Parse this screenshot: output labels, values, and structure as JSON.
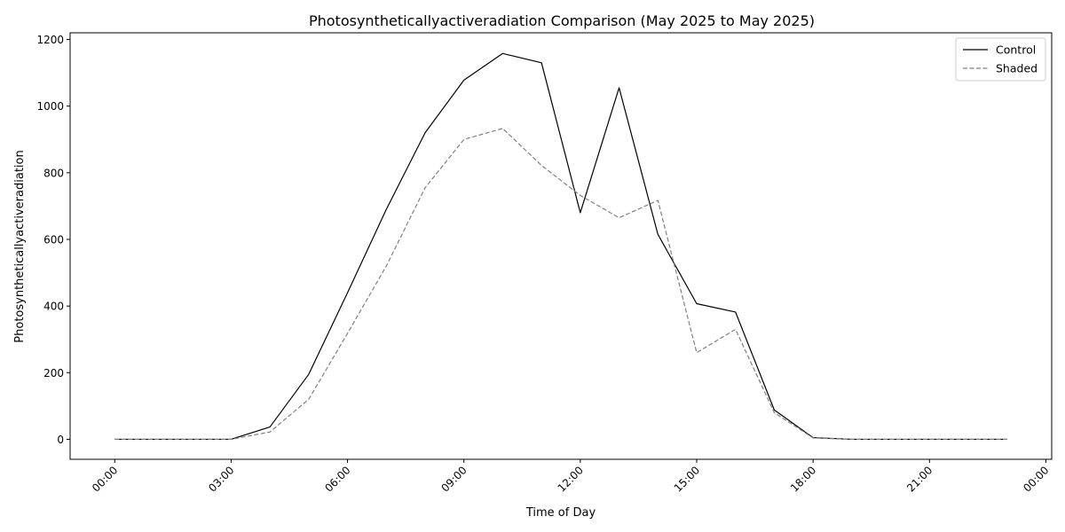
{
  "chart_data": {
    "type": "line",
    "title": "Photosyntheticallyactiveradiation Comparison (May 2025 to May 2025)",
    "xlabel": "Time of Day",
    "ylabel": "Photosyntheticallyactiveradiation",
    "xlim": [
      -1.15,
      24.15
    ],
    "ylim": [
      -60,
      1220
    ],
    "x_ticks": [
      0,
      3,
      6,
      9,
      12,
      15,
      18,
      21,
      24
    ],
    "x_tick_labels": [
      "00:00",
      "03:00",
      "06:00",
      "09:00",
      "12:00",
      "15:00",
      "18:00",
      "21:00",
      "00:00"
    ],
    "y_ticks": [
      0,
      200,
      400,
      600,
      800,
      1000,
      1200
    ],
    "y_tick_labels": [
      "0",
      "200",
      "400",
      "600",
      "800",
      "1000",
      "1200"
    ],
    "grid": false,
    "legend_position": "top-right",
    "x": [
      0,
      1,
      2,
      3,
      4,
      5,
      6,
      7,
      8,
      9,
      10,
      11,
      12,
      13,
      14,
      15,
      16,
      17,
      18,
      19,
      20,
      21,
      22,
      23
    ],
    "series": [
      {
        "name": "Control",
        "color": "#000000",
        "dash": "solid",
        "values": [
          0,
          0,
          0,
          0,
          37,
          195,
          440,
          690,
          920,
          1078,
          1158,
          1130,
          680,
          1055,
          615,
          407,
          382,
          88,
          5,
          0,
          0,
          0,
          0,
          0
        ]
      },
      {
        "name": "Shaded",
        "color": "#808080",
        "dash": "dashed",
        "values": [
          0,
          0,
          0,
          0,
          22,
          120,
          318,
          520,
          755,
          900,
          933,
          822,
          732,
          665,
          717,
          260,
          330,
          80,
          4,
          0,
          0,
          0,
          0,
          0
        ]
      }
    ]
  }
}
